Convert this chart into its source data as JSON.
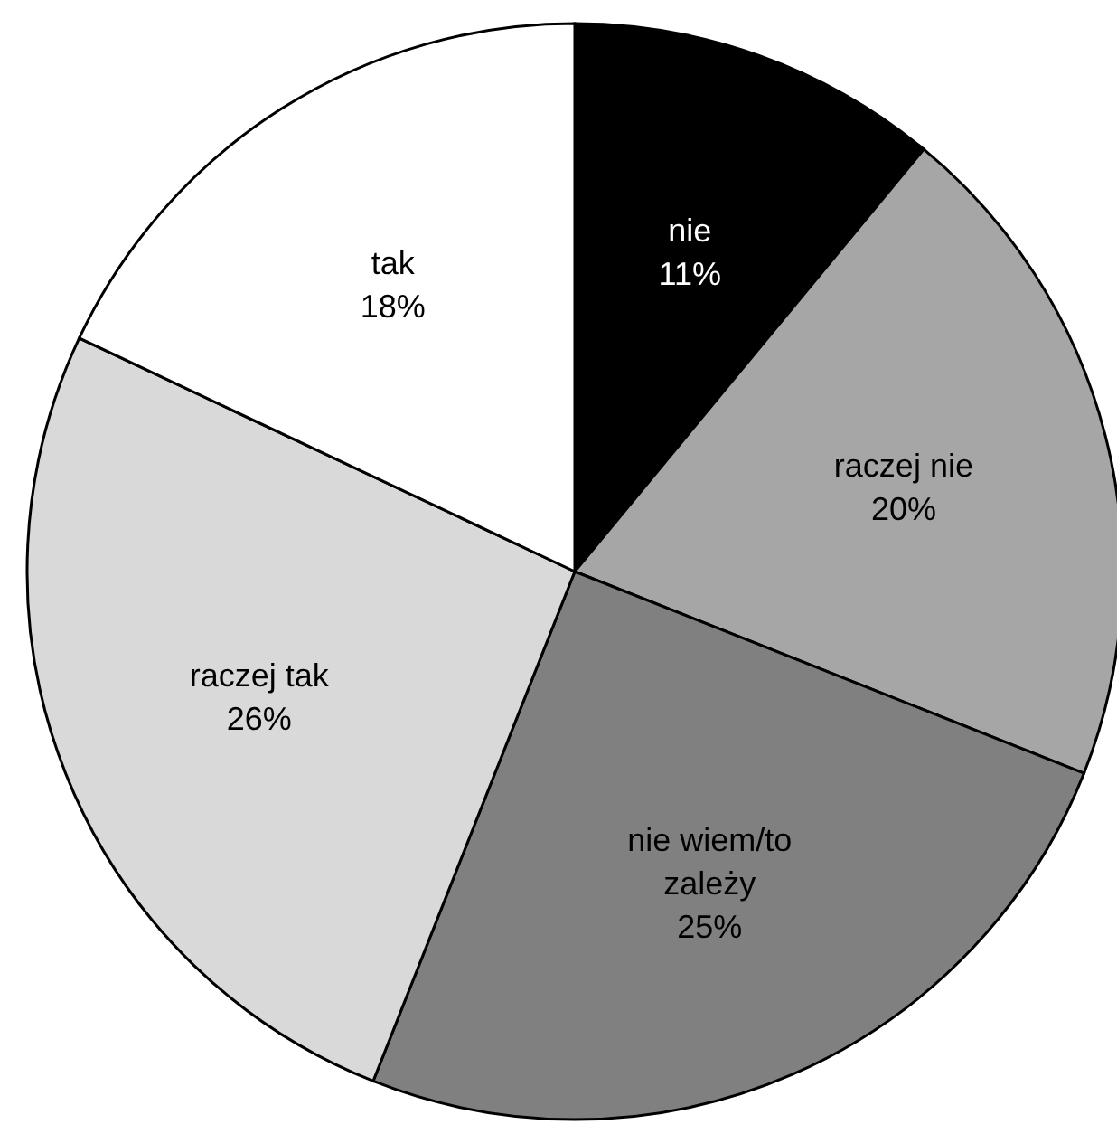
{
  "chart_data": {
    "type": "pie",
    "categories": [
      "nie",
      "raczej nie",
      "nie wiem/to zależy",
      "raczej tak",
      "tak"
    ],
    "values": [
      11,
      20,
      25,
      26,
      18
    ],
    "colors": [
      "#000000",
      "#a6a6a6",
      "#808080",
      "#d9d9d9",
      "#ffffff"
    ],
    "value_labels": [
      "11%",
      "20%",
      "25%",
      "26%",
      "18%"
    ]
  }
}
